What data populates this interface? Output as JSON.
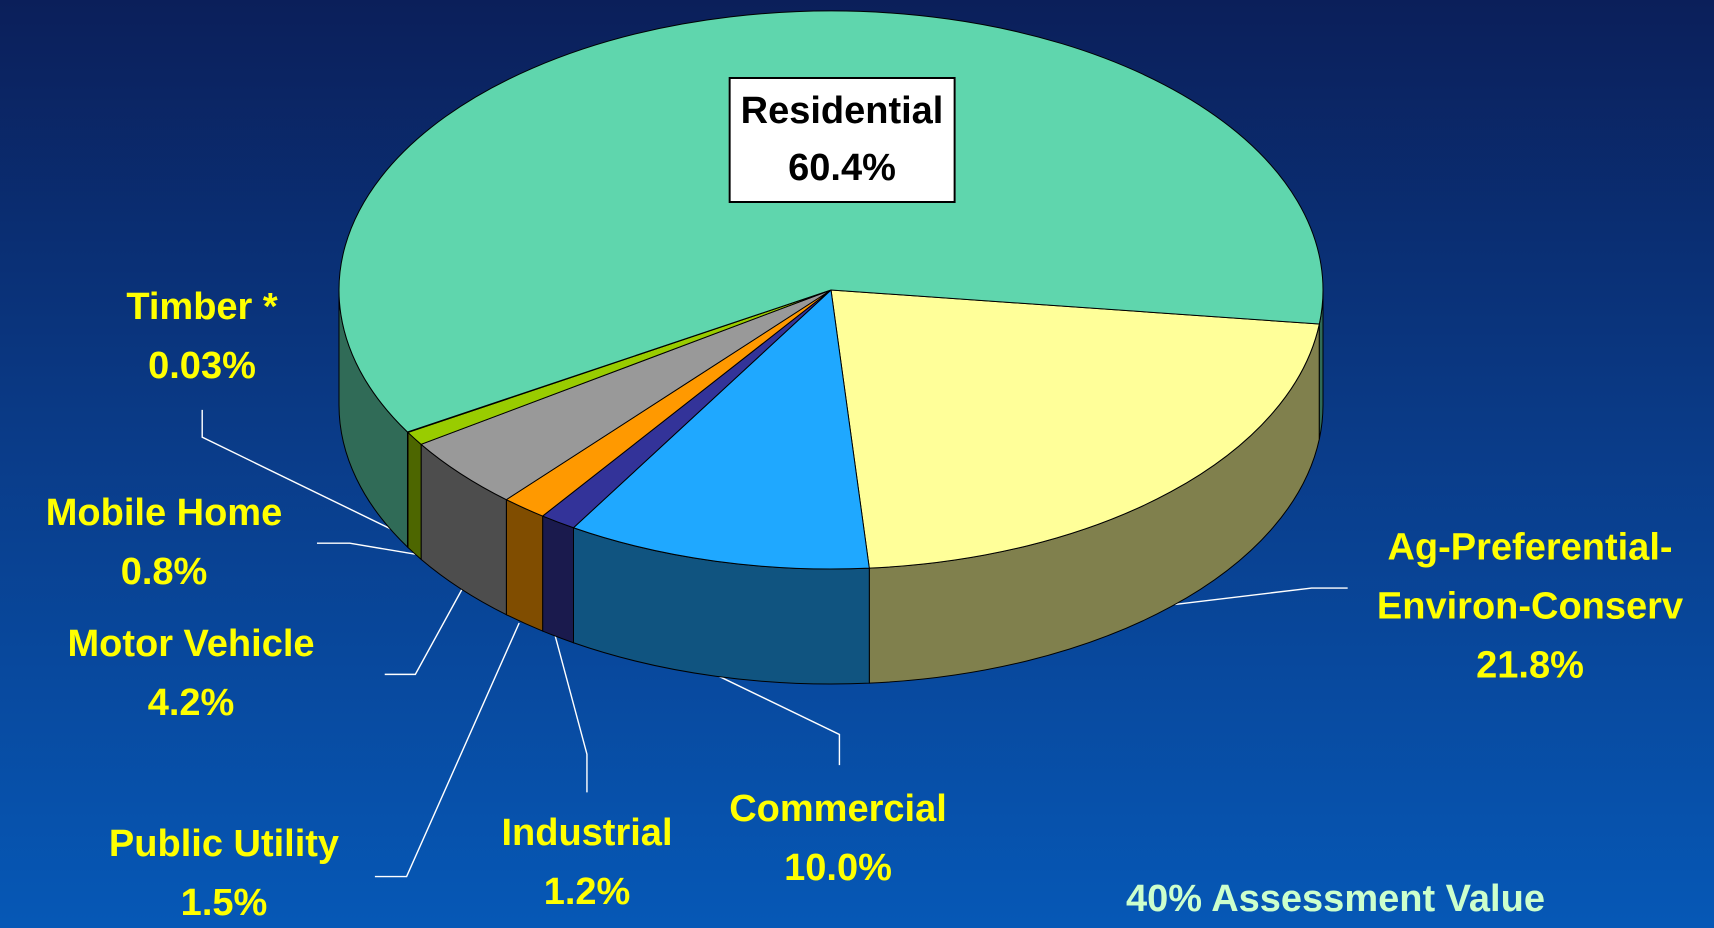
{
  "chart_data": {
    "type": "pie",
    "categories": [
      "Ag-Preferential-Environ-Conserv",
      "Commercial",
      "Industrial",
      "Public Utility",
      "Motor Vehicle",
      "Mobile Home",
      "Timber *",
      "Residential"
    ],
    "values": [
      21.8,
      10.0,
      1.2,
      1.5,
      4.2,
      0.8,
      0.03,
      60.4
    ],
    "value_labels": [
      "21.8%",
      "10.0%",
      "1.2%",
      "1.5%",
      "4.2%",
      "0.8%",
      "0.03%",
      "60.4%"
    ],
    "colors": [
      "#ffff99",
      "#1fa8ff",
      "#333399",
      "#ff9900",
      "#999999",
      "#99cc00",
      "#66cc33",
      "#5fd6ad"
    ],
    "annotation": "40% Assessment Value"
  }
}
